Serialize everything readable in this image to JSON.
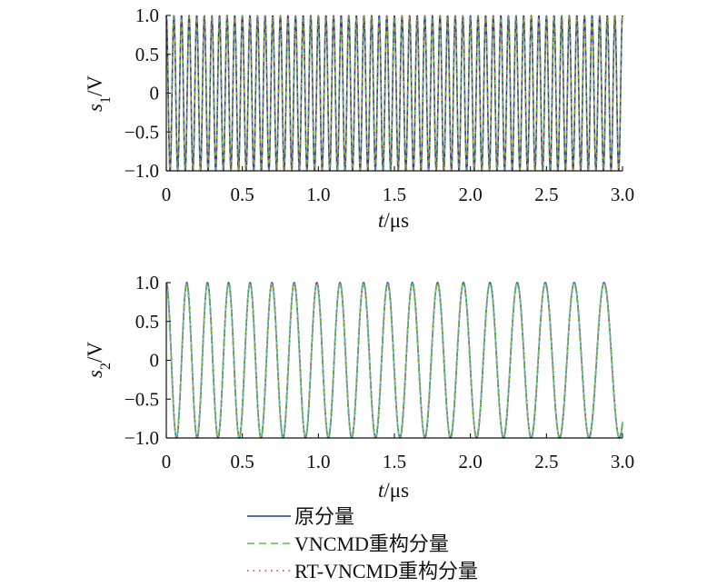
{
  "colors": {
    "original": "#1f3f9e",
    "vncmd": "#5cc13a",
    "rt_vncmd": "#d6304b",
    "cyan": "#5fc8c8",
    "axis": "#111111"
  },
  "legend": {
    "items": [
      "原分量",
      "VNCMD重构分量",
      "RT-VNCMD重构分量"
    ],
    "styles": [
      "solid",
      "dashed",
      "dotted"
    ]
  },
  "chart_data": [
    {
      "type": "line",
      "ylabel_var": "s",
      "ylabel_sub": "1",
      "ylabel_unit": "/V",
      "xlabel_var": "t",
      "xlabel_unit": "/μs",
      "xlim": [
        0,
        3.0
      ],
      "ylim": [
        -1.0,
        1.0
      ],
      "xticks": [
        "0",
        "0.5",
        "1.0",
        "1.5",
        "2.0",
        "2.5",
        "3.0"
      ],
      "yticks": [
        "1.0",
        "0.5",
        "0",
        "−0.5",
        "−1.0"
      ],
      "grid": false,
      "signal": {
        "kind": "cos",
        "cycles": 60,
        "chirp": 0
      },
      "series": [
        {
          "name": "原分量",
          "style": "solid"
        },
        {
          "name": "VNCMD重构分量",
          "style": "dashed"
        },
        {
          "name": "RT-VNCMD重构分量",
          "style": "dotted"
        }
      ]
    },
    {
      "type": "line",
      "ylabel_var": "s",
      "ylabel_sub": "2",
      "ylabel_unit": "/V",
      "xlabel_var": "t",
      "xlabel_unit": "/μs",
      "xlim": [
        0,
        3.0
      ],
      "ylim": [
        -1.0,
        1.0
      ],
      "xticks": [
        "0",
        "0.5",
        "1.0",
        "1.5",
        "2.0",
        "2.5",
        "3.0"
      ],
      "yticks": [
        "1.0",
        "0.5",
        "0",
        "−0.5",
        "−1.0"
      ],
      "grid": false,
      "signal": {
        "kind": "cos",
        "f_start_per_us": 7.5,
        "f_end_per_us": 4.9
      },
      "series": [
        {
          "name": "原分量",
          "style": "solid"
        },
        {
          "name": "VNCMD重构分量",
          "style": "dashed"
        },
        {
          "name": "RT-VNCMD重构分量",
          "style": "dotted"
        }
      ]
    }
  ]
}
